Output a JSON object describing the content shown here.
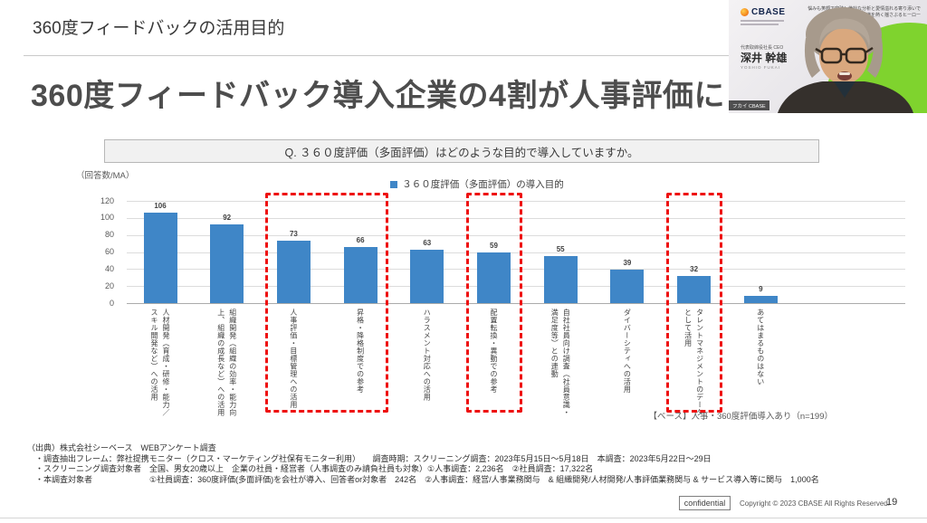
{
  "slide": {
    "kicker": "360度フィードバックの活用目的",
    "headline": "360度フィードバック導入企業の4割が人事評価に",
    "footer_source": [
      "（出典）株式会社シーベース　WEBアンケート調査",
      "　・調査抽出フレーム：弊社提携モニター（クロス・マーケティング社保有モニター利用）　　調査時期：スクリーニング調査：2023年5月15日～5月18日　本調査：2023年5月22日～29日",
      "　・スクリーニング調査対象者　全国、男女20歳以上　企業の社員・経営者（人事調査のみ請負社員も対象）①人事調査：2,236名　②社員調査：17,322名",
      "　・本調査対象者　　　　　　　①社員調査：360度評価(多面評価)を会社が導入、回答者or対象者　242名　②人事調査：経営/人事業務関与　& 組織開発/人材開発/人事評価業務関与 & サービス導入等に関与　1,000名"
    ],
    "confidential_label": "confidential",
    "copyright": "Copyright © 2023 CBASE All Rights Reserved.",
    "page_number": "19"
  },
  "speaker_video": {
    "brand": "CBASE",
    "banner_line1": "悩みも笑顔で突破！絶妙な分析と愛情溢れる寄り添いで",
    "banner_line2": "組織を熱く揺さぶるヒーロー",
    "role_title": "代表取締役社長 CEO",
    "name": "深井 幹雄",
    "name_roman": "YOSHIO FUKAI",
    "participant_label": "フカイ CBASE"
  },
  "chart_data": {
    "type": "bar",
    "title": "Q. ３６０度評価（多面評価）はどのような目的で導入していますか。",
    "axis_note": "（回答数/MA）",
    "legend": "３６０度評価（多面評価）の導入目的",
    "legend_position": "top",
    "categories": [
      "人材開発（育成・研修・能力／スキル開発など）への活用",
      "組織開発（組織の効率・能力向上、組織の成長など）への活用",
      "人事評価・目標管理への活用",
      "昇格・降格制度での参考",
      "ハラスメント対応への活用",
      "配置転換・異動での参考",
      "自社社員向け調査（社員意識・満足度等）との連動",
      "ダイバーシティへの活用",
      "タレントマネジメントのデータとして活用",
      "あてはまるものはない"
    ],
    "values": [
      106,
      92,
      73,
      66,
      63,
      59,
      55,
      39,
      32,
      9
    ],
    "ylim": [
      0,
      120
    ],
    "ytick_step": 20,
    "grid": true,
    "bar_color": "#3f86c7",
    "highlight_box_color": "#ee1111",
    "highlighted_category_groups": [
      [
        2,
        3
      ],
      [
        5
      ],
      [
        8
      ]
    ],
    "base_note": "【ベース】人事・360度評価導入あり（n=199）"
  }
}
